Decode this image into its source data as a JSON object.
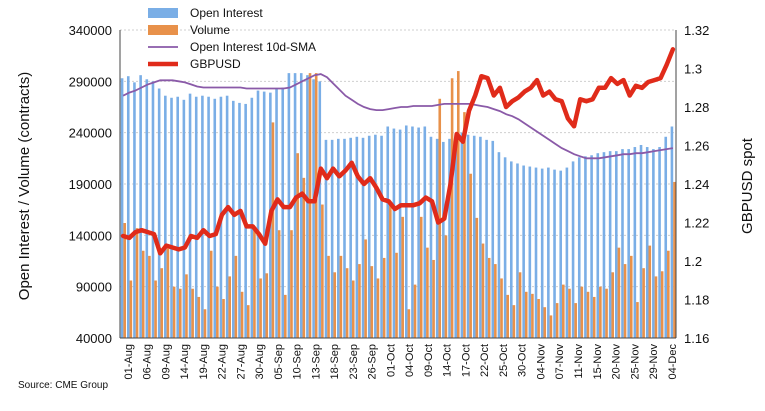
{
  "chart_data": {
    "type": "bar",
    "ylabel": "Open Interest / Volume (contracts)",
    "y2label": "GBPUSD spot",
    "ylim": [
      40000,
      340000
    ],
    "y2lim": [
      1.16,
      1.32
    ],
    "yticks": [
      40000,
      90000,
      140000,
      190000,
      240000,
      290000,
      340000
    ],
    "y2ticks": [
      "1.16",
      "1.18",
      "1.2",
      "1.22",
      "1.24",
      "1.26",
      "1.28",
      "1.3",
      "1.32"
    ],
    "grid": true,
    "legend_position": "top-left",
    "source": "Source: CME Group",
    "categories": [
      "01-Aug",
      "02-Aug",
      "03-Aug",
      "06-Aug",
      "07-Aug",
      "08-Aug",
      "09-Aug",
      "10-Aug",
      "13-Aug",
      "14-Aug",
      "15-Aug",
      "16-Aug",
      "17-Aug",
      "20-Aug",
      "21-Aug",
      "22-Aug",
      "23-Aug",
      "24-Aug",
      "27-Aug",
      "28-Aug",
      "29-Aug",
      "30-Aug",
      "31-Aug",
      "03-Sep",
      "04-Sep",
      "05-Sep",
      "06-Sep",
      "07-Sep",
      "10-Sep",
      "11-Sep",
      "12-Sep",
      "13-Sep",
      "14-Sep",
      "17-Sep",
      "18-Sep",
      "19-Sep",
      "20-Sep",
      "21-Sep",
      "24-Sep",
      "25-Sep",
      "26-Sep",
      "27-Sep",
      "28-Sep",
      "01-Oct",
      "02-Oct",
      "03-Oct",
      "04-Oct",
      "05-Oct",
      "08-Oct",
      "09-Oct",
      "10-Oct",
      "11-Oct",
      "12-Oct",
      "15-Oct",
      "16-Oct",
      "17-Oct",
      "18-Oct",
      "19-Oct",
      "22-Oct",
      "23-Oct",
      "24-Oct",
      "25-Oct",
      "26-Oct",
      "29-Oct",
      "30-Oct",
      "31-Oct",
      "01-Nov",
      "02-Nov",
      "05-Nov",
      "06-Nov",
      "07-Nov",
      "08-Nov",
      "09-Nov",
      "12-Nov",
      "13-Nov",
      "14-Nov",
      "15-Nov",
      "16-Nov",
      "19-Nov",
      "20-Nov",
      "21-Nov",
      "22-Nov",
      "23-Nov",
      "26-Nov",
      "27-Nov",
      "28-Nov",
      "29-Nov",
      "30-Nov",
      "03-Dec",
      "04-Dec"
    ],
    "x_tick_labels": [
      "01-Aug",
      "06-Aug",
      "09-Aug",
      "14-Aug",
      "19-Aug",
      "22-Aug",
      "27-Aug",
      "30-Aug",
      "05-Sep",
      "10-Sep",
      "13-Sep",
      "18-Sep",
      "23-Sep",
      "26-Sep",
      "01-Oct",
      "04-Oct",
      "09-Oct",
      "14-Oct",
      "17-Oct",
      "22-Oct",
      "25-Oct",
      "30-Oct",
      "04-Nov",
      "07-Nov",
      "11-Nov",
      "15-Nov",
      "20-Nov",
      "25-Nov",
      "29-Nov",
      "04-Dec"
    ],
    "series": [
      {
        "name": "Open Interest",
        "type": "bar",
        "axis": "left",
        "color": "#7aaee6",
        "values": [
          293000,
          295000,
          289000,
          296000,
          292000,
          290000,
          283000,
          276000,
          274000,
          275000,
          272000,
          278000,
          275000,
          276000,
          275000,
          273000,
          275000,
          276000,
          271000,
          269000,
          268000,
          274000,
          281000,
          280000,
          279000,
          283000,
          284000,
          298000,
          298000,
          298000,
          296000,
          292000,
          290000,
          233000,
          233000,
          234000,
          234000,
          235000,
          236000,
          235000,
          237000,
          238000,
          237000,
          246000,
          244000,
          243000,
          247000,
          246000,
          245000,
          246000,
          236000,
          234000,
          231000,
          234000,
          238000,
          240000,
          238000,
          237000,
          236000,
          233000,
          232000,
          221000,
          216000,
          212000,
          210000,
          208000,
          207000,
          206000,
          205000,
          206000,
          204000,
          203000,
          206000,
          212000,
          216000,
          217000,
          218000,
          220000,
          221000,
          222000,
          222000,
          224000,
          224000,
          226000,
          228000,
          226000,
          224000,
          226000,
          236000,
          246000
        ]
      },
      {
        "name": "Volume",
        "type": "bar",
        "axis": "left",
        "color": "#e8914a",
        "values": [
          152000,
          96000,
          147000,
          125000,
          120000,
          96000,
          108000,
          127000,
          90000,
          88000,
          102000,
          88000,
          80000,
          68000,
          125000,
          90000,
          78000,
          100000,
          120000,
          85000,
          72000,
          145000,
          98000,
          103000,
          250000,
          145000,
          82000,
          145000,
          220000,
          196000,
          298000,
          298000,
          170000,
          120000,
          104000,
          120000,
          108000,
          96000,
          112000,
          136000,
          110000,
          98000,
          118000,
          173000,
          123000,
          158000,
          68000,
          92000,
          158000,
          128000,
          116000,
          273000,
          140000,
          293000,
          300000,
          260000,
          200000,
          157000,
          132000,
          118000,
          112000,
          98000,
          82000,
          72000,
          104000,
          85000,
          83000,
          78000,
          70000,
          62000,
          74000,
          92000,
          88000,
          74000,
          90000,
          85000,
          80000,
          90000,
          88000,
          104000,
          128000,
          112000,
          120000,
          75000,
          108000,
          130000,
          100000,
          105000,
          125000,
          192000
        ]
      },
      {
        "name": "Open Interest 10d-SMA",
        "type": "line",
        "axis": "left",
        "color": "#8a5aa8",
        "values": [
          276000,
          279000,
          281000,
          284000,
          287000,
          289000,
          291000,
          291000,
          291000,
          290000,
          289000,
          287000,
          285000,
          284000,
          284000,
          284000,
          284000,
          284000,
          284000,
          284000,
          283000,
          283000,
          283000,
          283000,
          283000,
          283000,
          283000,
          284000,
          287000,
          290000,
          293000,
          296000,
          297000,
          294000,
          288000,
          282000,
          276000,
          272000,
          268000,
          265000,
          263000,
          262000,
          262000,
          263000,
          264000,
          265000,
          265000,
          266000,
          266000,
          266000,
          266000,
          267000,
          268000,
          268000,
          268000,
          268000,
          268000,
          267000,
          266000,
          265000,
          263000,
          261000,
          258000,
          256000,
          253000,
          249000,
          245000,
          241000,
          237000,
          233000,
          229000,
          225000,
          222000,
          219000,
          217000,
          215000,
          215000,
          215000,
          216000,
          217000,
          218000,
          219000,
          219000,
          220000,
          220000,
          221000,
          222000,
          223000,
          224000,
          225000
        ]
      },
      {
        "name": "GBPUSD",
        "type": "line",
        "axis": "right",
        "color": "#e02b1a",
        "values": [
          1.213,
          1.212,
          1.215,
          1.216,
          1.215,
          1.214,
          1.204,
          1.208,
          1.207,
          1.206,
          1.207,
          1.213,
          1.212,
          1.216,
          1.213,
          1.214,
          1.224,
          1.228,
          1.224,
          1.226,
          1.218,
          1.218,
          1.214,
          1.209,
          1.226,
          1.232,
          1.228,
          1.228,
          1.233,
          1.235,
          1.231,
          1.231,
          1.248,
          1.243,
          1.248,
          1.244,
          1.247,
          1.251,
          1.244,
          1.24,
          1.243,
          1.238,
          1.232,
          1.231,
          1.227,
          1.229,
          1.229,
          1.229,
          1.23,
          1.233,
          1.231,
          1.22,
          1.222,
          1.24,
          1.266,
          1.262,
          1.278,
          1.286,
          1.296,
          1.295,
          1.286,
          1.29,
          1.28,
          1.283,
          1.285,
          1.288,
          1.29,
          1.294,
          1.286,
          1.288,
          1.284,
          1.283,
          1.274,
          1.27,
          1.284,
          1.283,
          1.284,
          1.29,
          1.29,
          1.295,
          1.292,
          1.294,
          1.286,
          1.291,
          1.29,
          1.293,
          1.294,
          1.295,
          1.302,
          1.31
        ]
      }
    ]
  }
}
